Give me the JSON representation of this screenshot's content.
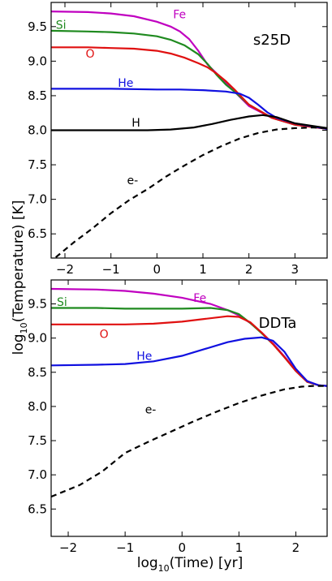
{
  "figure": {
    "ylabel_base": "log",
    "ylabel_sub": "10",
    "ylabel_rest": "(Temperature) [K]",
    "xlabel_base": "log",
    "xlabel_sub": "10",
    "xlabel_rest": "(Time) [yr]"
  },
  "chart_data": [
    {
      "type": "line",
      "panel_label": "s25D",
      "xlim": [
        -2.3,
        3.7
      ],
      "ylim": [
        6.15,
        9.85
      ],
      "xticks": [
        -2,
        -1,
        0,
        1,
        2,
        3
      ],
      "xtick_labels": [
        "−2",
        "−1",
        "0",
        "1",
        "2",
        "3"
      ],
      "yticks": [
        6.5,
        7.0,
        7.5,
        8.0,
        8.5,
        9.0,
        9.5
      ],
      "ytick_labels": [
        "6.5",
        "7.0",
        "7.5",
        "8.0",
        "8.5",
        "9.0",
        "9.5"
      ],
      "grid": false,
      "legend": "inline labels",
      "series": [
        {
          "name": "Fe",
          "color": "#c000c0",
          "style": "solid",
          "label_pos": [
            0.35,
            9.62
          ],
          "x": [
            -2.3,
            -1.5,
            -1.0,
            -0.5,
            0.0,
            0.3,
            0.5,
            0.7,
            0.9,
            1.1,
            1.3,
            1.5,
            1.7,
            2.0,
            2.5,
            3.0,
            3.7
          ],
          "y": [
            9.72,
            9.71,
            9.69,
            9.65,
            9.57,
            9.5,
            9.43,
            9.32,
            9.15,
            8.95,
            8.82,
            8.68,
            8.55,
            8.35,
            8.18,
            8.08,
            8.02
          ]
        },
        {
          "name": "Si",
          "color": "#1f8a1f",
          "style": "solid",
          "label_pos": [
            -2.2,
            9.47
          ],
          "x": [
            -2.3,
            -1.5,
            -1.0,
            -0.5,
            0.0,
            0.3,
            0.6,
            0.9,
            1.1,
            1.3,
            1.5,
            1.7,
            2.0,
            2.5,
            3.0,
            3.7
          ],
          "y": [
            9.44,
            9.43,
            9.42,
            9.4,
            9.36,
            9.31,
            9.23,
            9.1,
            8.96,
            8.8,
            8.66,
            8.55,
            8.37,
            8.18,
            8.08,
            8.02
          ]
        },
        {
          "name": "O",
          "color": "#e01010",
          "style": "solid",
          "label_pos": [
            -1.55,
            9.05
          ],
          "x": [
            -2.3,
            -1.5,
            -1.0,
            -0.5,
            0.0,
            0.3,
            0.6,
            0.9,
            1.1,
            1.3,
            1.5,
            1.7,
            2.0,
            2.5,
            3.0,
            3.7
          ],
          "y": [
            9.2,
            9.2,
            9.19,
            9.18,
            9.15,
            9.11,
            9.05,
            8.97,
            8.91,
            8.82,
            8.71,
            8.58,
            8.37,
            8.18,
            8.08,
            8.02
          ]
        },
        {
          "name": "He",
          "color": "#1010e0",
          "style": "solid",
          "label_pos": [
            -0.85,
            8.63
          ],
          "x": [
            -2.3,
            -1.0,
            0.0,
            0.5,
            1.0,
            1.5,
            1.8,
            2.0,
            2.2,
            2.4,
            2.6,
            3.0,
            3.7
          ],
          "y": [
            8.6,
            8.6,
            8.59,
            8.59,
            8.58,
            8.56,
            8.53,
            8.47,
            8.37,
            8.26,
            8.18,
            8.1,
            8.02
          ]
        },
        {
          "name": "H",
          "color": "#000000",
          "style": "solid",
          "label_pos": [
            -0.55,
            8.05
          ],
          "x": [
            -2.3,
            -1.0,
            -0.2,
            0.3,
            0.8,
            1.2,
            1.6,
            2.0,
            2.3,
            2.6,
            3.0,
            3.7
          ],
          "y": [
            8.0,
            8.0,
            8.0,
            8.01,
            8.04,
            8.09,
            8.15,
            8.2,
            8.22,
            8.19,
            8.1,
            8.03
          ]
        },
        {
          "name": "e-",
          "color": "#000000",
          "style": "dashed",
          "label_pos": [
            -0.65,
            7.22
          ],
          "x": [
            -2.2,
            -1.8,
            -1.4,
            -1.0,
            -0.6,
            -0.2,
            0.2,
            0.6,
            1.0,
            1.4,
            1.8,
            2.2,
            2.6,
            3.0,
            3.4,
            3.7
          ],
          "y": [
            6.16,
            6.38,
            6.58,
            6.8,
            6.99,
            7.15,
            7.33,
            7.49,
            7.64,
            7.77,
            7.88,
            7.96,
            8.01,
            8.03,
            8.04,
            8.03
          ]
        }
      ]
    },
    {
      "type": "line",
      "panel_label": "DDTa",
      "xlim": [
        -2.3,
        2.55
      ],
      "ylim": [
        6.1,
        9.85
      ],
      "xticks": [
        -2,
        -1,
        0,
        1,
        2
      ],
      "xtick_labels": [
        "−2",
        "−1",
        "0",
        "1",
        "2"
      ],
      "yticks": [
        6.5,
        7.0,
        7.5,
        8.0,
        8.5,
        9.0,
        9.5
      ],
      "ytick_labels": [
        "6.5",
        "7.0",
        "7.5",
        "8.0",
        "8.5",
        "9.0",
        "9.5"
      ],
      "grid": false,
      "legend": "inline labels",
      "series": [
        {
          "name": "Fe",
          "color": "#c000c0",
          "style": "solid",
          "label_pos": [
            0.2,
            9.53
          ],
          "x": [
            -2.3,
            -1.5,
            -1.0,
            -0.5,
            0.0,
            0.5,
            0.8,
            1.0,
            1.2,
            1.4,
            1.6,
            1.8,
            2.0,
            2.2,
            2.4,
            2.55
          ],
          "y": [
            9.72,
            9.71,
            9.69,
            9.65,
            9.59,
            9.5,
            9.41,
            9.33,
            9.22,
            9.08,
            8.92,
            8.73,
            8.53,
            8.37,
            8.31,
            8.3
          ]
        },
        {
          "name": "Si",
          "color": "#1f8a1f",
          "style": "solid",
          "label_pos": [
            -2.2,
            9.47
          ],
          "x": [
            -2.3,
            -1.5,
            -1.0,
            -0.5,
            0.0,
            0.5,
            0.8,
            1.0,
            1.2,
            1.4,
            1.6,
            1.8,
            2.0,
            2.2,
            2.4,
            2.55
          ],
          "y": [
            9.44,
            9.44,
            9.43,
            9.43,
            9.43,
            9.44,
            9.41,
            9.35,
            9.22,
            9.07,
            8.91,
            8.72,
            8.52,
            8.36,
            8.31,
            8.3
          ]
        },
        {
          "name": "O",
          "color": "#e01010",
          "style": "solid",
          "label_pos": [
            -1.45,
            9.0
          ],
          "x": [
            -2.3,
            -1.5,
            -1.0,
            -0.5,
            0.0,
            0.4,
            0.8,
            1.0,
            1.2,
            1.4,
            1.6,
            1.8,
            2.0,
            2.2,
            2.4,
            2.55
          ],
          "y": [
            9.2,
            9.2,
            9.2,
            9.21,
            9.24,
            9.28,
            9.32,
            9.31,
            9.23,
            9.08,
            8.91,
            8.72,
            8.52,
            8.36,
            8.31,
            8.3
          ]
        },
        {
          "name": "He",
          "color": "#1010e0",
          "style": "solid",
          "label_pos": [
            -0.8,
            8.68
          ],
          "x": [
            -2.3,
            -1.5,
            -1.0,
            -0.5,
            0.0,
            0.4,
            0.8,
            1.1,
            1.4,
            1.6,
            1.8,
            2.0,
            2.2,
            2.4,
            2.55
          ],
          "y": [
            8.6,
            8.61,
            8.62,
            8.66,
            8.74,
            8.84,
            8.94,
            8.99,
            9.01,
            8.96,
            8.8,
            8.55,
            8.37,
            8.31,
            8.3
          ]
        },
        {
          "name": "e-",
          "color": "#000000",
          "style": "dashed",
          "label_pos": [
            -0.65,
            7.9
          ],
          "x": [
            -2.3,
            -1.8,
            -1.4,
            -1.0,
            -0.6,
            -0.2,
            0.2,
            0.6,
            1.0,
            1.4,
            1.8,
            2.1,
            2.3,
            2.55
          ],
          "y": [
            6.68,
            6.85,
            7.05,
            7.32,
            7.48,
            7.63,
            7.78,
            7.92,
            8.05,
            8.16,
            8.25,
            8.29,
            8.3,
            8.3
          ]
        }
      ]
    }
  ]
}
